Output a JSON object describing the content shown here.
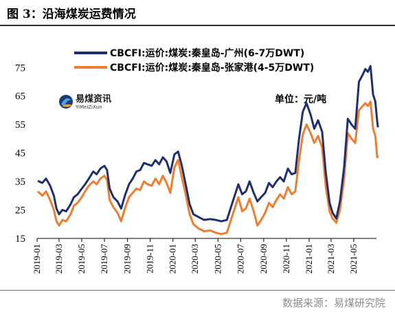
{
  "header": {
    "title": "图 3：沿海煤炭运费情况"
  },
  "footer": {
    "source": "数据来源：易煤研究院"
  },
  "logo": {
    "name": "易煤资讯",
    "sub": "YiMeiZiXun",
    "icon": "yimei-logo-icon"
  },
  "chart_data": {
    "type": "line",
    "unit_label": "单位：元/吨",
    "ylim": [
      15,
      77
    ],
    "yticks": [
      15,
      25,
      35,
      45,
      55,
      65,
      75
    ],
    "xlim": [
      "2019-01",
      "2021-07"
    ],
    "xticks": [
      "2019-01",
      "2019-03",
      "2019-05",
      "2019-07",
      "2019-09",
      "2019-11",
      "2020-01",
      "2020-03",
      "2020-05",
      "2020-07",
      "2020-09",
      "2020-11",
      "2021-01",
      "2021-03",
      "2021-05"
    ],
    "grid": false,
    "legend_position": "top",
    "series": [
      {
        "name": "CBCFI:运价:煤炭:秦皇岛-广州(6-7万DWT)",
        "color": "#1f2f6e",
        "points": [
          [
            "2019-01-03",
            35.2
          ],
          [
            "2019-01-15",
            34.5
          ],
          [
            "2019-01-25",
            36.0
          ],
          [
            "2019-02-05",
            33.5
          ],
          [
            "2019-02-15",
            30.0
          ],
          [
            "2019-02-22",
            25.5
          ],
          [
            "2019-03-01",
            23.5
          ],
          [
            "2019-03-10",
            25.0
          ],
          [
            "2019-03-20",
            24.5
          ],
          [
            "2019-04-01",
            27.0
          ],
          [
            "2019-04-10",
            29.5
          ],
          [
            "2019-04-20",
            30.5
          ],
          [
            "2019-05-01",
            32.5
          ],
          [
            "2019-05-10",
            34.0
          ],
          [
            "2019-05-20",
            36.0
          ],
          [
            "2019-06-01",
            38.5
          ],
          [
            "2019-06-10",
            37.5
          ],
          [
            "2019-06-20",
            39.5
          ],
          [
            "2019-07-01",
            40.5
          ],
          [
            "2019-07-08",
            39.0
          ],
          [
            "2019-07-15",
            32.5
          ],
          [
            "2019-07-25",
            29.5
          ],
          [
            "2019-08-05",
            28.0
          ],
          [
            "2019-08-15",
            25.5
          ],
          [
            "2019-08-25",
            30.0
          ],
          [
            "2019-09-05",
            34.0
          ],
          [
            "2019-09-15",
            36.0
          ],
          [
            "2019-09-25",
            38.5
          ],
          [
            "2019-10-05",
            39.0
          ],
          [
            "2019-10-15",
            41.5
          ],
          [
            "2019-10-25",
            41.0
          ],
          [
            "2019-11-05",
            40.5
          ],
          [
            "2019-11-15",
            42.5
          ],
          [
            "2019-11-25",
            41.0
          ],
          [
            "2019-12-05",
            43.5
          ],
          [
            "2019-12-15",
            42.0
          ],
          [
            "2019-12-25",
            38.0
          ],
          [
            "2020-01-05",
            44.5
          ],
          [
            "2020-01-15",
            45.5
          ],
          [
            "2020-01-25",
            40.5
          ],
          [
            "2020-02-05",
            33.5
          ],
          [
            "2020-02-15",
            27.0
          ],
          [
            "2020-02-25",
            23.5
          ],
          [
            "2020-03-10",
            22.5
          ],
          [
            "2020-03-25",
            21.5
          ],
          [
            "2020-04-10",
            21.8
          ],
          [
            "2020-04-25",
            21.5
          ],
          [
            "2020-05-10",
            21.0
          ],
          [
            "2020-05-25",
            21.5
          ],
          [
            "2020-06-05",
            26.0
          ],
          [
            "2020-06-15",
            30.0
          ],
          [
            "2020-06-25",
            34.0
          ],
          [
            "2020-07-05",
            30.5
          ],
          [
            "2020-07-15",
            31.5
          ],
          [
            "2020-07-25",
            35.0
          ],
          [
            "2020-08-05",
            31.0
          ],
          [
            "2020-08-15",
            28.0
          ],
          [
            "2020-08-25",
            29.5
          ],
          [
            "2020-09-05",
            31.0
          ],
          [
            "2020-09-15",
            34.5
          ],
          [
            "2020-09-25",
            33.0
          ],
          [
            "2020-10-05",
            35.0
          ],
          [
            "2020-10-15",
            36.5
          ],
          [
            "2020-10-25",
            35.0
          ],
          [
            "2020-11-05",
            39.5
          ],
          [
            "2020-11-15",
            37.5
          ],
          [
            "2020-11-25",
            38.0
          ],
          [
            "2020-12-05",
            50.0
          ],
          [
            "2020-12-15",
            59.5
          ],
          [
            "2020-12-25",
            62.5
          ],
          [
            "2021-01-05",
            58.5
          ],
          [
            "2021-01-15",
            53.5
          ],
          [
            "2021-01-25",
            56.5
          ],
          [
            "2021-02-05",
            52.5
          ],
          [
            "2021-02-15",
            38.0
          ],
          [
            "2021-02-25",
            27.5
          ],
          [
            "2021-03-05",
            24.0
          ],
          [
            "2021-03-15",
            22.0
          ],
          [
            "2021-03-25",
            28.0
          ],
          [
            "2021-04-05",
            40.0
          ],
          [
            "2021-04-15",
            57.0
          ],
          [
            "2021-04-25",
            55.0
          ],
          [
            "2021-05-05",
            53.5
          ],
          [
            "2021-05-15",
            70.0
          ],
          [
            "2021-05-25",
            72.5
          ],
          [
            "2021-06-01",
            74.5
          ],
          [
            "2021-06-08",
            73.5
          ],
          [
            "2021-06-15",
            75.5
          ],
          [
            "2021-06-22",
            65.5
          ],
          [
            "2021-06-28",
            63.0
          ],
          [
            "2021-07-03",
            56.0
          ],
          [
            "2021-07-05",
            54.0
          ]
        ]
      },
      {
        "name": "CBCFI:运价:煤炭:秦皇岛-张家港(4-5万DWT)",
        "color": "#ed7d31",
        "points": [
          [
            "2019-01-03",
            31.5
          ],
          [
            "2019-01-15",
            30.0
          ],
          [
            "2019-01-25",
            31.5
          ],
          [
            "2019-02-05",
            28.5
          ],
          [
            "2019-02-15",
            25.0
          ],
          [
            "2019-02-22",
            21.0
          ],
          [
            "2019-03-01",
            19.5
          ],
          [
            "2019-03-10",
            21.5
          ],
          [
            "2019-03-20",
            21.0
          ],
          [
            "2019-04-01",
            23.5
          ],
          [
            "2019-04-10",
            26.5
          ],
          [
            "2019-04-20",
            27.5
          ],
          [
            "2019-05-01",
            29.5
          ],
          [
            "2019-05-10",
            31.5
          ],
          [
            "2019-05-20",
            33.5
          ],
          [
            "2019-06-01",
            35.0
          ],
          [
            "2019-06-10",
            34.0
          ],
          [
            "2019-06-20",
            36.0
          ],
          [
            "2019-07-01",
            37.0
          ],
          [
            "2019-07-08",
            35.5
          ],
          [
            "2019-07-15",
            28.5
          ],
          [
            "2019-07-25",
            26.0
          ],
          [
            "2019-08-05",
            24.0
          ],
          [
            "2019-08-15",
            21.0
          ],
          [
            "2019-08-25",
            25.5
          ],
          [
            "2019-09-05",
            29.5
          ],
          [
            "2019-09-15",
            31.0
          ],
          [
            "2019-09-25",
            32.5
          ],
          [
            "2019-10-05",
            32.0
          ],
          [
            "2019-10-15",
            35.0
          ],
          [
            "2019-10-25",
            34.0
          ],
          [
            "2019-11-05",
            33.5
          ],
          [
            "2019-11-15",
            36.0
          ],
          [
            "2019-11-25",
            34.0
          ],
          [
            "2019-12-05",
            37.0
          ],
          [
            "2019-12-15",
            34.5
          ],
          [
            "2019-12-25",
            31.0
          ],
          [
            "2020-01-05",
            40.0
          ],
          [
            "2020-01-15",
            42.5
          ],
          [
            "2020-01-25",
            36.5
          ],
          [
            "2020-02-05",
            30.0
          ],
          [
            "2020-02-15",
            23.5
          ],
          [
            "2020-02-25",
            20.0
          ],
          [
            "2020-03-10",
            18.5
          ],
          [
            "2020-03-25",
            17.5
          ],
          [
            "2020-04-10",
            17.8
          ],
          [
            "2020-04-25",
            17.0
          ],
          [
            "2020-05-10",
            16.5
          ],
          [
            "2020-05-25",
            17.0
          ],
          [
            "2020-06-05",
            21.5
          ],
          [
            "2020-06-15",
            25.5
          ],
          [
            "2020-06-25",
            29.5
          ],
          [
            "2020-07-05",
            24.5
          ],
          [
            "2020-07-15",
            25.5
          ],
          [
            "2020-07-25",
            29.0
          ],
          [
            "2020-08-05",
            24.5
          ],
          [
            "2020-08-15",
            19.5
          ],
          [
            "2020-08-25",
            21.5
          ],
          [
            "2020-09-05",
            24.0
          ],
          [
            "2020-09-15",
            27.5
          ],
          [
            "2020-09-25",
            26.0
          ],
          [
            "2020-10-05",
            28.5
          ],
          [
            "2020-10-15",
            30.5
          ],
          [
            "2020-10-25",
            29.0
          ],
          [
            "2020-11-05",
            33.0
          ],
          [
            "2020-11-15",
            30.5
          ],
          [
            "2020-11-25",
            31.5
          ],
          [
            "2020-12-05",
            42.5
          ],
          [
            "2020-12-15",
            51.5
          ],
          [
            "2020-12-25",
            55.0
          ],
          [
            "2021-01-05",
            52.0
          ],
          [
            "2021-01-15",
            48.5
          ],
          [
            "2021-01-25",
            51.0
          ],
          [
            "2021-02-05",
            47.0
          ],
          [
            "2021-02-15",
            33.0
          ],
          [
            "2021-02-25",
            24.5
          ],
          [
            "2021-03-05",
            22.0
          ],
          [
            "2021-03-15",
            20.5
          ],
          [
            "2021-03-25",
            25.0
          ],
          [
            "2021-04-05",
            36.0
          ],
          [
            "2021-04-15",
            52.0
          ],
          [
            "2021-04-25",
            50.0
          ],
          [
            "2021-05-05",
            48.5
          ],
          [
            "2021-05-15",
            60.0
          ],
          [
            "2021-05-25",
            61.5
          ],
          [
            "2021-06-01",
            62.5
          ],
          [
            "2021-06-08",
            61.5
          ],
          [
            "2021-06-15",
            63.0
          ],
          [
            "2021-06-22",
            53.5
          ],
          [
            "2021-06-28",
            51.0
          ],
          [
            "2021-07-03",
            43.5
          ],
          [
            "2021-07-05",
            44.0
          ]
        ]
      }
    ]
  }
}
